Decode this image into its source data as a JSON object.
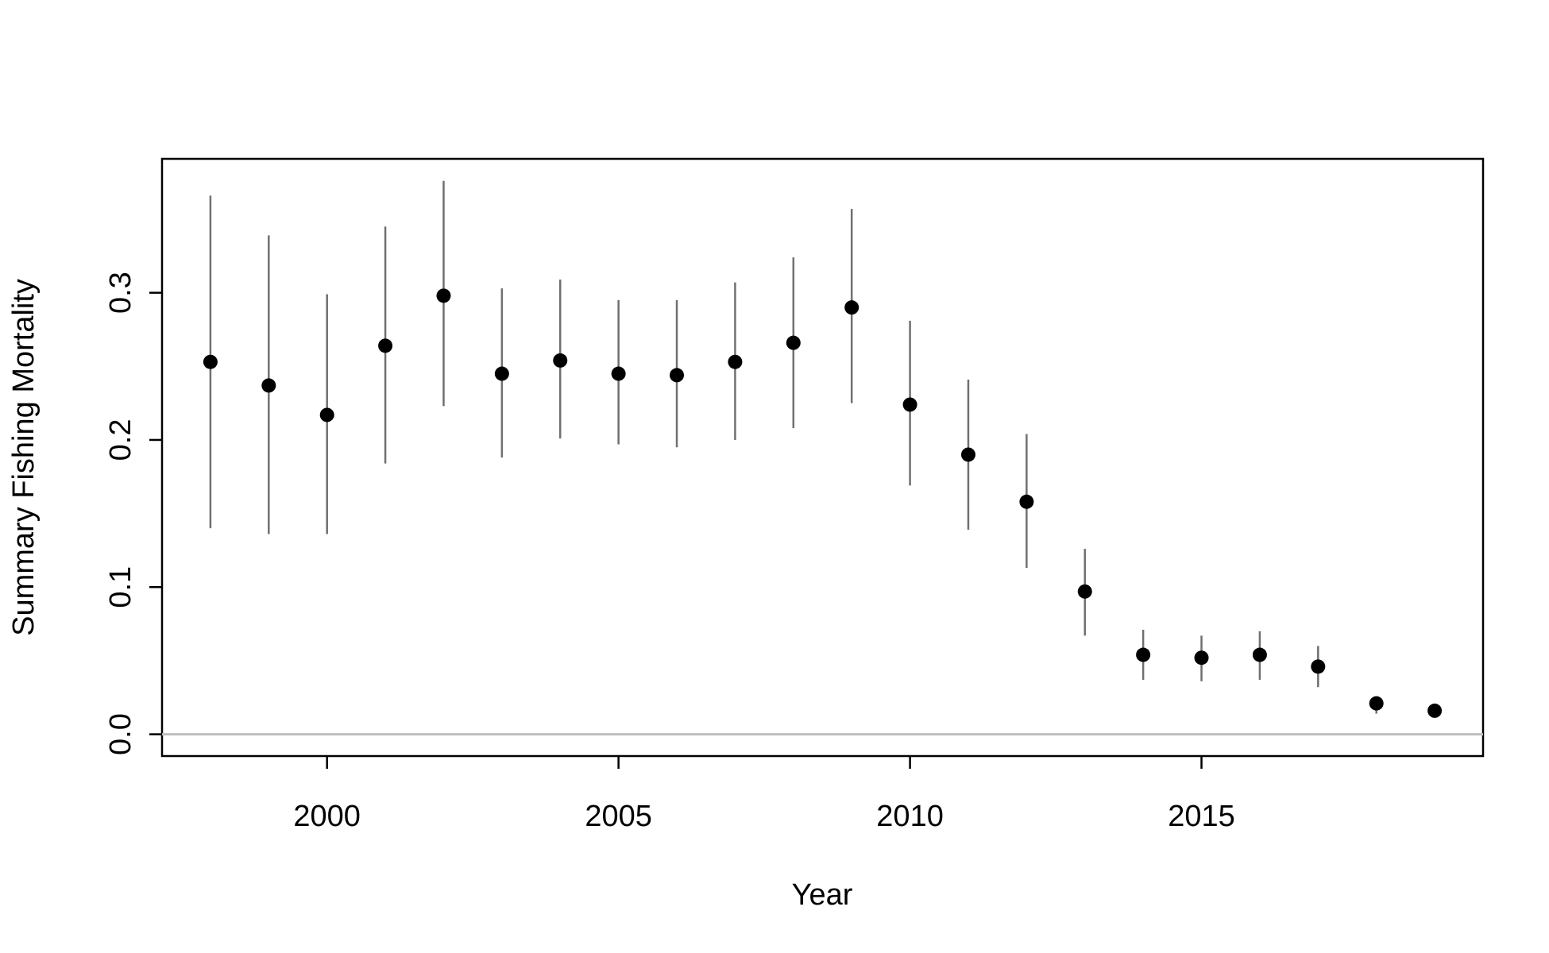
{
  "chart_data": {
    "type": "errorbar",
    "x_label": "Year",
    "y_label": "Summary Fishing Mortality",
    "x": [
      1998,
      1999,
      2000,
      2001,
      2002,
      2003,
      2004,
      2005,
      2006,
      2007,
      2008,
      2009,
      2010,
      2011,
      2012,
      2013,
      2014,
      2015,
      2016,
      2017,
      2018,
      2019
    ],
    "values": [
      0.253,
      0.237,
      0.217,
      0.264,
      0.298,
      0.245,
      0.254,
      0.245,
      0.244,
      0.253,
      0.266,
      0.29,
      0.224,
      0.19,
      0.158,
      0.097,
      0.054,
      0.052,
      0.054,
      0.046,
      0.021,
      0.016
    ],
    "lower": [
      0.14,
      0.136,
      0.136,
      0.184,
      0.223,
      0.188,
      0.201,
      0.197,
      0.195,
      0.2,
      0.208,
      0.225,
      0.169,
      0.139,
      0.113,
      0.067,
      0.037,
      0.036,
      0.037,
      0.032,
      0.014,
      0.013
    ],
    "upper": [
      0.366,
      0.339,
      0.299,
      0.345,
      0.376,
      0.303,
      0.309,
      0.295,
      0.295,
      0.307,
      0.324,
      0.357,
      0.281,
      0.241,
      0.204,
      0.126,
      0.071,
      0.067,
      0.07,
      0.06,
      0.025,
      0.019
    ],
    "point_color": "#000000",
    "bar_color": "#707070",
    "reference_line": {
      "value": 0,
      "color": "#bebebe"
    },
    "xlim": [
      1997.17,
      2019.83
    ],
    "ylim": [
      -0.0148,
      0.391
    ],
    "xticks": [
      2000,
      2005,
      2010,
      2015
    ],
    "yticks": [
      {
        "value": 0,
        "label": "0.0"
      },
      0.1,
      0.2,
      0.3
    ]
  }
}
